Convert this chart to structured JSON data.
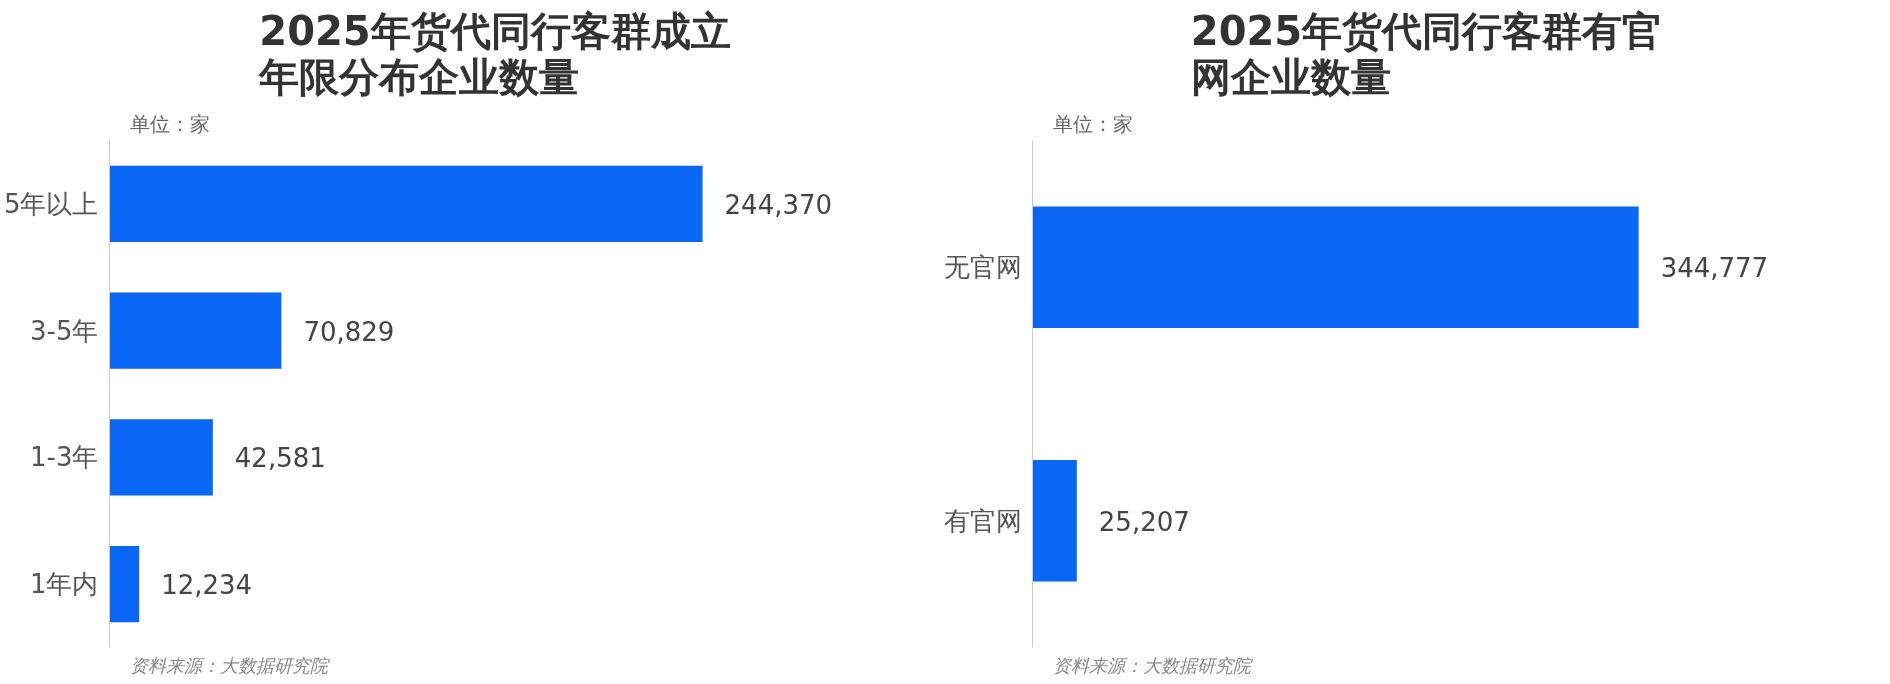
{
  "chart_data": [
    {
      "type": "bar",
      "orientation": "horizontal",
      "title": "2025年货代同行客群成立年限分布企业数量",
      "categories": [
        "5年以上",
        "3-5年",
        "1-3年",
        "1年内"
      ],
      "values": [
        244370,
        70829,
        42581,
        12234
      ],
      "value_labels": [
        "244,370",
        "70,829",
        "42,581",
        "12,234"
      ],
      "color": "#0a66f5",
      "annotations": [
        "单位：家",
        "资料来源：大数据研究院"
      ]
    },
    {
      "type": "bar",
      "orientation": "horizontal",
      "title": "2025年货代同行客群有官网企业数量",
      "categories": [
        "无官网",
        "有官网"
      ],
      "values": [
        344777,
        25207
      ],
      "value_labels": [
        "344,777",
        "25,207"
      ],
      "color": "#0a66f5",
      "annotations": [
        "单位：家",
        "资料来源：大数据研究院"
      ]
    }
  ]
}
